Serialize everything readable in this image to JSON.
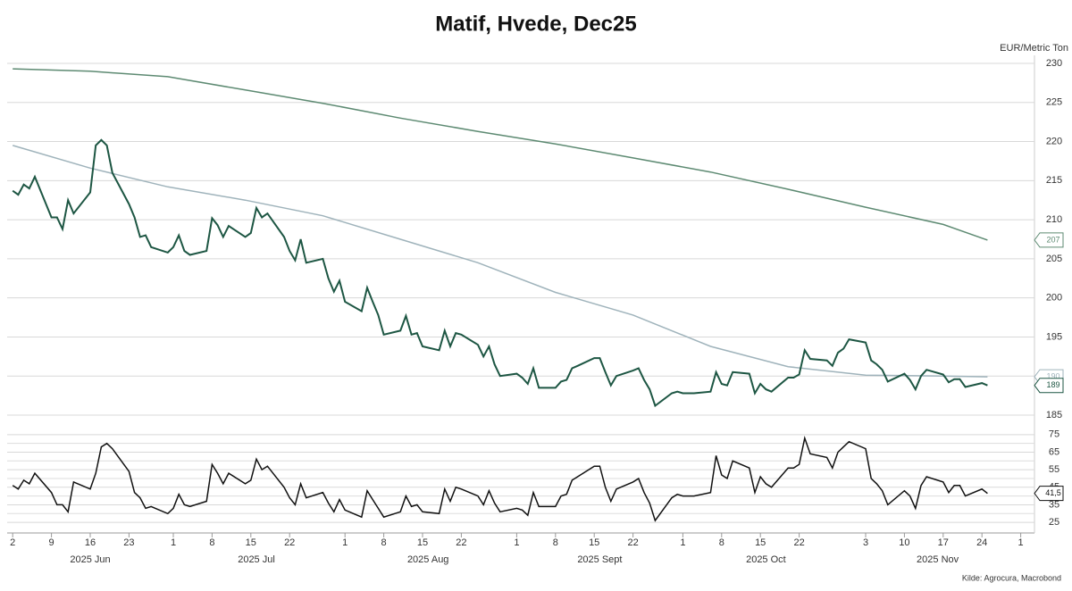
{
  "chart_data": {
    "type": "line",
    "title": "Matif, Hvede, Dec25",
    "source": "Kilde: Agrocura, Macrobond",
    "xlim": [
      "2025-06-01",
      "2025-12-03"
    ],
    "xticks": [
      {
        "value": "2025-06-02",
        "label": "2"
      },
      {
        "value": "2025-06-09",
        "label": "9"
      },
      {
        "value": "2025-06-16",
        "label": "16"
      },
      {
        "value": "2025-06-23",
        "label": "23"
      },
      {
        "value": "2025-07-01",
        "label": "1"
      },
      {
        "value": "2025-07-08",
        "label": "8"
      },
      {
        "value": "2025-07-15",
        "label": "15"
      },
      {
        "value": "2025-07-22",
        "label": "22"
      },
      {
        "value": "2025-08-01",
        "label": "1"
      },
      {
        "value": "2025-08-08",
        "label": "8"
      },
      {
        "value": "2025-08-15",
        "label": "15"
      },
      {
        "value": "2025-08-22",
        "label": "22"
      },
      {
        "value": "2025-09-01",
        "label": "1"
      },
      {
        "value": "2025-09-08",
        "label": "8"
      },
      {
        "value": "2025-09-15",
        "label": "15"
      },
      {
        "value": "2025-09-22",
        "label": "22"
      },
      {
        "value": "2025-10-01",
        "label": "1"
      },
      {
        "value": "2025-10-08",
        "label": "8"
      },
      {
        "value": "2025-10-15",
        "label": "15"
      },
      {
        "value": "2025-10-22",
        "label": "22"
      },
      {
        "value": "2025-11-03",
        "label": "3"
      },
      {
        "value": "2025-11-10",
        "label": "10"
      },
      {
        "value": "2025-11-17",
        "label": "17"
      },
      {
        "value": "2025-11-24",
        "label": "24"
      },
      {
        "value": "2025-12-01",
        "label": "1"
      }
    ],
    "months": [
      {
        "value": "2025-06",
        "label": "2025 Jun"
      },
      {
        "value": "2025-07",
        "label": "2025 Jul"
      },
      {
        "value": "2025-08",
        "label": "2025 Aug"
      },
      {
        "value": "2025-09",
        "label": "2025 Sept"
      },
      {
        "value": "2025-10",
        "label": "2025 Oct"
      },
      {
        "value": "2025-11",
        "label": "2025 Nov"
      }
    ],
    "x": [
      "2025-06-02",
      "2025-06-03",
      "2025-06-04",
      "2025-06-05",
      "2025-06-06",
      "2025-06-09",
      "2025-06-10",
      "2025-06-11",
      "2025-06-12",
      "2025-06-13",
      "2025-06-16",
      "2025-06-17",
      "2025-06-18",
      "2025-06-19",
      "2025-06-20",
      "2025-06-23",
      "2025-06-24",
      "2025-06-25",
      "2025-06-26",
      "2025-06-27",
      "2025-06-30",
      "2025-07-01",
      "2025-07-02",
      "2025-07-03",
      "2025-07-04",
      "2025-07-07",
      "2025-07-08",
      "2025-07-09",
      "2025-07-10",
      "2025-07-11",
      "2025-07-14",
      "2025-07-15",
      "2025-07-16",
      "2025-07-17",
      "2025-07-18",
      "2025-07-21",
      "2025-07-22",
      "2025-07-23",
      "2025-07-24",
      "2025-07-25",
      "2025-07-28",
      "2025-07-29",
      "2025-07-30",
      "2025-07-31",
      "2025-08-01",
      "2025-08-04",
      "2025-08-05",
      "2025-08-06",
      "2025-08-07",
      "2025-08-08",
      "2025-08-11",
      "2025-08-12",
      "2025-08-13",
      "2025-08-14",
      "2025-08-15",
      "2025-08-18",
      "2025-08-19",
      "2025-08-20",
      "2025-08-21",
      "2025-08-22",
      "2025-08-25",
      "2025-08-26",
      "2025-08-27",
      "2025-08-28",
      "2025-08-29",
      "2025-09-01",
      "2025-09-02",
      "2025-09-03",
      "2025-09-04",
      "2025-09-05",
      "2025-09-08",
      "2025-09-09",
      "2025-09-10",
      "2025-09-11",
      "2025-09-12",
      "2025-09-15",
      "2025-09-16",
      "2025-09-17",
      "2025-09-18",
      "2025-09-19",
      "2025-09-22",
      "2025-09-23",
      "2025-09-24",
      "2025-09-25",
      "2025-09-26",
      "2025-09-29",
      "2025-09-30",
      "2025-10-01",
      "2025-10-02",
      "2025-10-03",
      "2025-10-06",
      "2025-10-07",
      "2025-10-08",
      "2025-10-09",
      "2025-10-10",
      "2025-10-13",
      "2025-10-14",
      "2025-10-15",
      "2025-10-16",
      "2025-10-17",
      "2025-10-20",
      "2025-10-21",
      "2025-10-22",
      "2025-10-23",
      "2025-10-24",
      "2025-10-27",
      "2025-10-28",
      "2025-10-29",
      "2025-10-30",
      "2025-10-31",
      "2025-11-03",
      "2025-11-04",
      "2025-11-05",
      "2025-11-06",
      "2025-11-07",
      "2025-11-10",
      "2025-11-11",
      "2025-11-12",
      "2025-11-13",
      "2025-11-14",
      "2025-11-17",
      "2025-11-18",
      "2025-11-19",
      "2025-11-20",
      "2025-11-21",
      "2025-11-24",
      "2025-11-25"
    ],
    "panels": [
      {
        "y_label": "EUR/Metric Ton",
        "ylim": [
          185,
          230
        ],
        "yticks": [
          185,
          190,
          195,
          200,
          205,
          210,
          215,
          220,
          225,
          230
        ],
        "grid": true,
        "series": [
          {
            "color": "#5d8a72",
            "end_label": "207",
            "x": [
              "2025-06-02",
              "2025-06-16",
              "2025-06-30",
              "2025-07-14",
              "2025-07-28",
              "2025-08-11",
              "2025-08-25",
              "2025-09-08",
              "2025-09-22",
              "2025-10-06",
              "2025-10-20",
              "2025-11-03",
              "2025-11-17",
              "2025-11-25"
            ],
            "values": [
              229.3,
              229,
              228.3,
              226.6,
              224.9,
              223,
              221.3,
              219.7,
              217.9,
              216.1,
              213.9,
              211.6,
              209.4,
              207.4
            ]
          },
          {
            "color": "#9fb3bb",
            "end_label": "190",
            "x": [
              "2025-06-02",
              "2025-06-16",
              "2025-06-30",
              "2025-07-14",
              "2025-07-28",
              "2025-08-11",
              "2025-08-25",
              "2025-09-08",
              "2025-09-22",
              "2025-10-06",
              "2025-10-20",
              "2025-11-03",
              "2025-11-17",
              "2025-11-25"
            ],
            "values": [
              219.5,
              216.6,
              214.2,
              212.5,
              210.5,
              207.5,
              204.5,
              200.7,
              197.8,
              193.8,
              191.2,
              190.1,
              190,
              189.9
            ]
          },
          {
            "color": "#1d5643",
            "end_label": "189",
            "values": [
              213.7,
              213.2,
              214.5,
              214,
              215.5,
              210.3,
              210.3,
              208.8,
              212.5,
              210.8,
              213.5,
              219.5,
              220.2,
              219.5,
              216,
              212,
              210.3,
              207.8,
              208,
              206.5,
              205.8,
              206.5,
              208,
              206,
              205.5,
              206,
              210.2,
              209.3,
              207.8,
              209.2,
              207.8,
              208.3,
              211.5,
              210.3,
              210.8,
              207.8,
              206,
              204.8,
              207.5,
              204.5,
              205,
              202.5,
              200.8,
              202.2,
              199.5,
              198.3,
              201.3,
              199.5,
              197.8,
              195.3,
              195.8,
              197.7,
              195.3,
              195.5,
              193.8,
              193.3,
              195.8,
              193.8,
              195.5,
              195.3,
              194,
              192.5,
              193.8,
              191.5,
              190,
              190.3,
              189.8,
              189,
              191,
              188.5,
              188.5,
              189.3,
              189.5,
              191,
              191.3,
              192.3,
              192.3,
              190.5,
              188.8,
              190,
              190.7,
              191,
              189.5,
              188.3,
              186.2,
              187.8,
              188,
              187.8,
              187.8,
              187.8,
              188,
              190.5,
              189,
              188.8,
              190.5,
              190.3,
              187.8,
              189,
              188.3,
              188,
              189.8,
              189.8,
              190.2,
              193.3,
              192.2,
              192,
              191.3,
              193,
              193.5,
              194.7,
              194.3,
              192,
              191.5,
              190.8,
              189.3,
              190.3,
              189.5,
              188.3,
              190,
              190.8,
              190.2,
              189.2,
              189.6,
              189.6,
              188.6,
              189.1,
              188.8
            ]
          }
        ]
      },
      {
        "ylim": [
          22,
          80
        ],
        "yticks": [
          25,
          35,
          45,
          55,
          65,
          75
        ],
        "minor_yticks": [
          30,
          40,
          50,
          60,
          70
        ],
        "grid": true,
        "series": [
          {
            "color": "#111111",
            "end_label": "41,5",
            "values": [
              46,
              44,
              49,
              47,
              53,
              42,
              35,
              35,
              31,
              48,
              44,
              53,
              68,
              70,
              67,
              54,
              42,
              39,
              33,
              34,
              30,
              33,
              41,
              35,
              34,
              37,
              58,
              53,
              47,
              53,
              47,
              49,
              61,
              55,
              57,
              45,
              39,
              35,
              47,
              39,
              42,
              36,
              31,
              38,
              32,
              28,
              43,
              38,
              33,
              28,
              31,
              40,
              34,
              35,
              31,
              30,
              44,
              37,
              45,
              44,
              40,
              35,
              43,
              36,
              31,
              33,
              32,
              29,
              42,
              34,
              34,
              40,
              41,
              49,
              51,
              57,
              57,
              45,
              37,
              44,
              48,
              50,
              42,
              36,
              26,
              39,
              41,
              40,
              40,
              40,
              42,
              63,
              52,
              50,
              60,
              56,
              42,
              51,
              47,
              45,
              56,
              56,
              58,
              73,
              64,
              62,
              56,
              65,
              68,
              71,
              67,
              50,
              47,
              43,
              35,
              43,
              40,
              33,
              46,
              51,
              48,
              42,
              46,
              46,
              40,
              44,
              41.5
            ]
          }
        ]
      }
    ]
  }
}
